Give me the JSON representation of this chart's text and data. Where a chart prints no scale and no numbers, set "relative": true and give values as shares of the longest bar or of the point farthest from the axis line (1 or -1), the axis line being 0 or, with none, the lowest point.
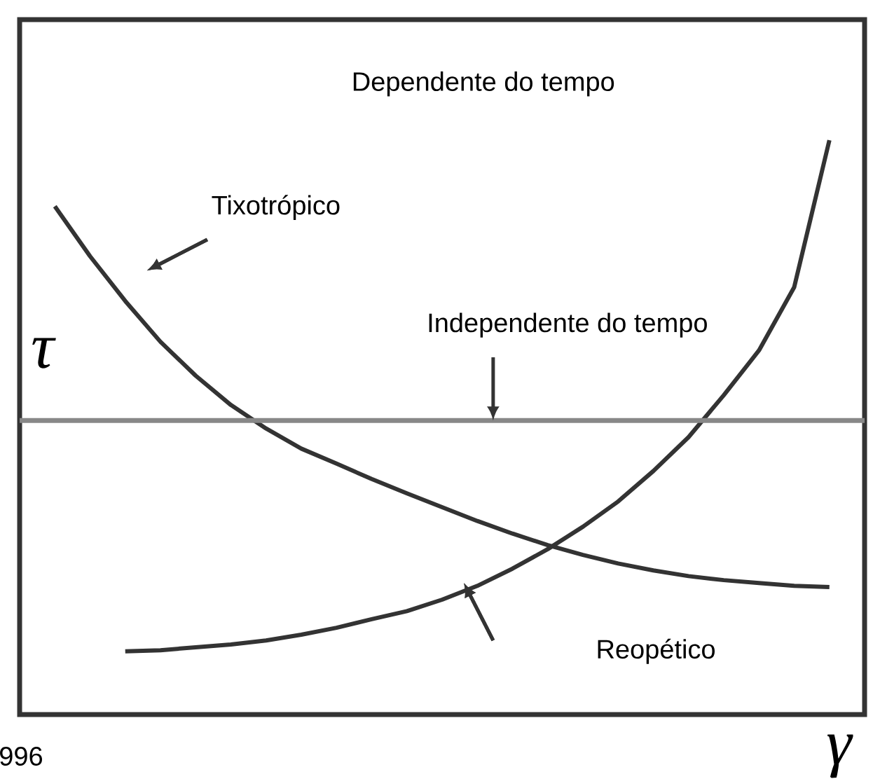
{
  "chart_data": {
    "type": "line",
    "relative": true,
    "xlabel": "γ",
    "ylabel": "τ",
    "categories": [
      null,
      null,
      null,
      null,
      null,
      null,
      null,
      null,
      null,
      null,
      null,
      null,
      null,
      null,
      null,
      null,
      null,
      null,
      null,
      null,
      null,
      null,
      null,
      null,
      null
    ],
    "series": [
      {
        "color": "#333333",
        "values": [
          null,
          0.885,
          0.798,
          0.72,
          0.649,
          0.59,
          0.539,
          0.498,
          0.463,
          0.437,
          0.41,
          0.385,
          0.361,
          0.337,
          0.315,
          0.295,
          0.278,
          0.263,
          0.251,
          0.241,
          0.234,
          0.229,
          0.224,
          0.222,
          null
        ]
      },
      {
        "color": "#333333",
        "values": [
          null,
          null,
          null,
          0.11,
          0.112,
          0.117,
          0.122,
          0.129,
          0.139,
          0.151,
          0.166,
          0.18,
          0.2,
          0.224,
          0.254,
          0.288,
          0.327,
          0.371,
          0.424,
          0.483,
          0.556,
          0.634,
          0.744,
          1.0,
          null
        ]
      },
      {
        "color": "#888888",
        "values": [
          0.512,
          0.512,
          0.512,
          0.512,
          0.512,
          0.512,
          0.512,
          0.512,
          0.512,
          0.512,
          0.512,
          0.512,
          0.512,
          0.512,
          0.512,
          0.512,
          0.512,
          0.512,
          0.512,
          0.512,
          0.512,
          0.512,
          0.512,
          0.512,
          0.512
        ]
      }
    ],
    "annotations": [
      "Dependente do tempo",
      "996",
      "Independente do tempo",
      "Tixotrópico",
      "Reopético"
    ],
    "marker": "none",
    "line_style": "solid"
  }
}
